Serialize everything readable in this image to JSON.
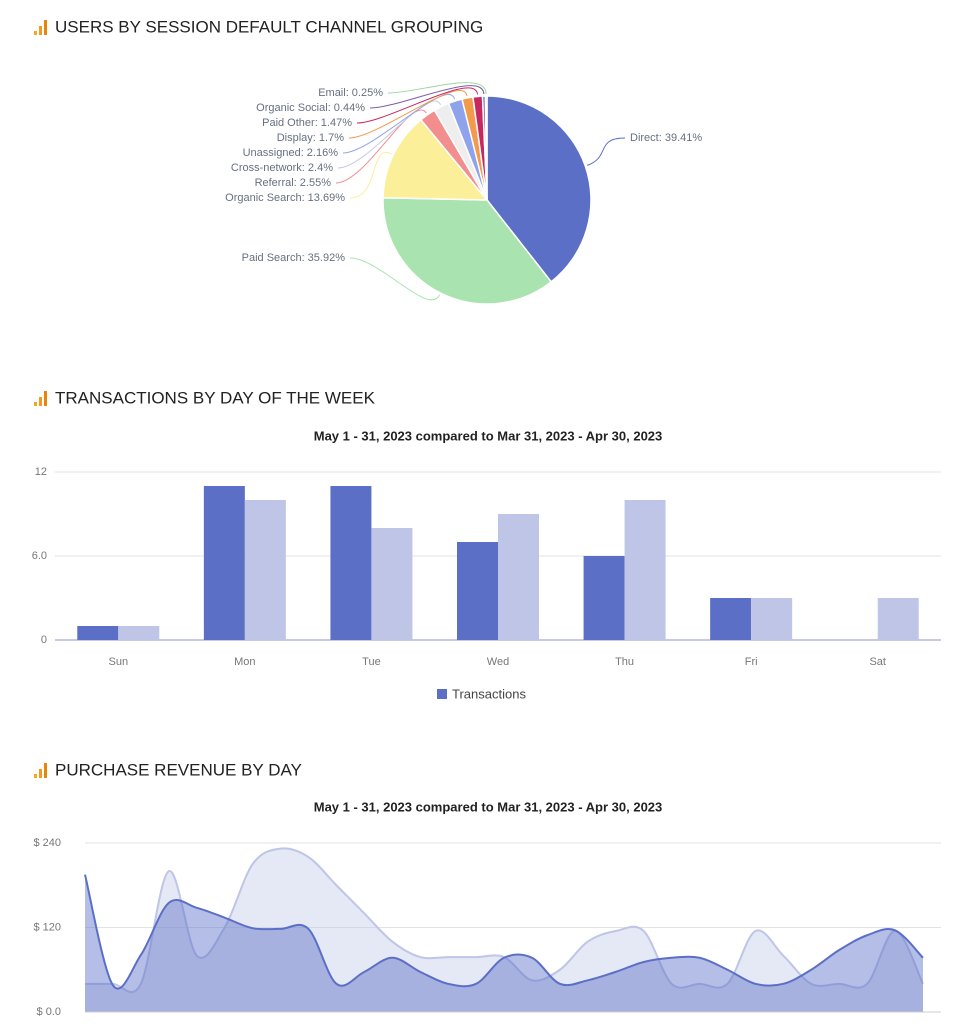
{
  "chart_data": [
    {
      "type": "pie",
      "title": "USERS BY SESSION DEFAULT CHANNEL GROUPING",
      "values": [
        39.41,
        35.92,
        13.69,
        2.55,
        2.4,
        2.16,
        1.7,
        1.47,
        0.44,
        0.25
      ],
      "value_labels": [
        "Direct: 39.41%",
        "Paid Search: 35.92%",
        "Organic Search: 13.69%",
        "Referral: 2.55%",
        "Cross-network: 2.4%",
        "Unassigned: 2.16%",
        "Display: 1.7%",
        "Paid Other: 1.47%",
        "Organic Social: 0.44%",
        "Email: 0.25%"
      ],
      "colors": [
        "#5b6fc7",
        "#a8e3b0",
        "#fbef9a",
        "#f28e8e",
        "#eeeeee",
        "#8fa3ec",
        "#f39a4c",
        "#c7285f",
        "#7b5ea7",
        "#9ed6a0"
      ]
    },
    {
      "type": "bar",
      "title": "TRANSACTIONS BY DAY OF THE WEEK",
      "subtitle": "May 1 - 31, 2023 compared to Mar 31, 2023 - Apr 30, 2023",
      "categories": [
        "Sun",
        "Mon",
        "Tue",
        "Wed",
        "Thu",
        "Fri",
        "Sat"
      ],
      "series": [
        {
          "name": "Transactions",
          "color": "#5b6fc7",
          "values": [
            1,
            11,
            11,
            7,
            6,
            3,
            0
          ]
        },
        {
          "color": "#bfc5e6",
          "values": [
            1,
            10,
            8,
            9,
            10,
            3,
            3
          ]
        }
      ],
      "ylim": [
        0,
        12
      ],
      "yticks": [
        0,
        {
          "value": 6,
          "label": "6.0"
        },
        12
      ],
      "grid": true
    },
    {
      "type": "area",
      "title": "PURCHASE REVENUE BY DAY",
      "subtitle": "May 1 - 31, 2023 compared to Mar 31, 2023 - Apr 30, 2023",
      "series": [
        {
          "color": "#bfc5e6",
          "values": [
            40,
            40,
            40,
            200,
            80,
            120,
            210,
            232,
            220,
            180,
            140,
            100,
            78,
            78,
            78,
            78,
            45,
            60,
            100,
            115,
            115,
            40,
            40,
            40,
            115,
            80,
            40,
            40,
            40,
            115,
            40
          ]
        },
        {
          "color": "#5b6fc7",
          "values": [
            195,
            38,
            81,
            155,
            148,
            134,
            119,
            118,
            118,
            40,
            57,
            77,
            57,
            40,
            40,
            77,
            77,
            40,
            45,
            57,
            71,
            77,
            77,
            60,
            40,
            40,
            60,
            88,
            109,
            116,
            77
          ]
        }
      ],
      "ylim": [
        0,
        240
      ],
      "yticks": [
        {
          "value": 0,
          "label": "$ 0.0"
        },
        {
          "value": 120,
          "label": "$ 120"
        },
        {
          "value": 240,
          "label": "$ 240"
        }
      ],
      "grid": true
    }
  ]
}
